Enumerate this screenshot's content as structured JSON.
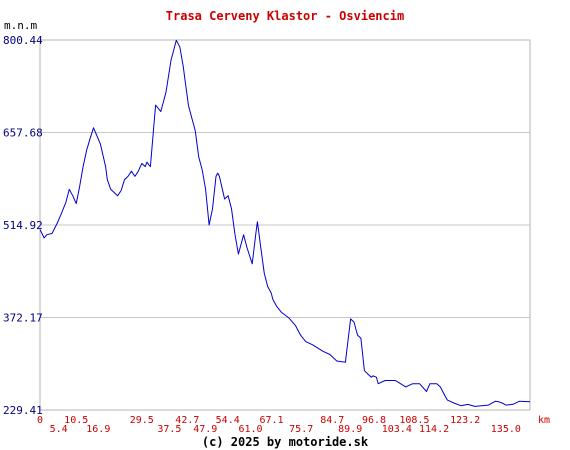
{
  "colors": {
    "line": "#0000cc",
    "grid": "#c8c8c8",
    "title": "#cc0000",
    "ytick": "#000080",
    "xtick": "#cc0000"
  },
  "footer": "(c) 2025 by motoride.sk",
  "chart_data": {
    "type": "line",
    "title": "Trasa Cerveny Klastor - Osviencim",
    "ylabel": "m.n.m",
    "xlabel": "km",
    "grid": true,
    "ylim": [
      229.41,
      800.44
    ],
    "xlim": [
      0,
      142
    ],
    "y_ticks": [
      "800.44",
      "657.68",
      "514.92",
      "372.17",
      "229.41"
    ],
    "x_ticks_upper": [
      "0",
      "10.5",
      "29.5",
      "42.7",
      "54.4",
      "67.1",
      "84.7",
      "96.8",
      "108.5",
      "123.2"
    ],
    "x_ticks_lower": [
      "5.4",
      "16.9",
      "37.5",
      "47.9",
      "61.0",
      "75.7",
      "89.9",
      "103.4",
      "114.2",
      "135.0"
    ],
    "series": [
      {
        "x": [
          0,
          1.2,
          2,
          3.5,
          5,
          6,
          7.5,
          8.5,
          9.5,
          10.5,
          11.5,
          12.5,
          13.5,
          14.5,
          15.5,
          17.5,
          19,
          19.5,
          20.5,
          22.5,
          23.5,
          24.5,
          25.5,
          26.5,
          27.5,
          28.5,
          29.5,
          30.5,
          31,
          31.5,
          32,
          33.5,
          35,
          36.5,
          38,
          38.5,
          39.5,
          40.5,
          41.5,
          42,
          43,
          44,
          44.5,
          45,
          46,
          47,
          48,
          49,
          50,
          51,
          51.5,
          52,
          53.5,
          54.5,
          55.5,
          56.5,
          57.5,
          59,
          60,
          61.5,
          62.5,
          63,
          64,
          65,
          66,
          67,
          67.5,
          68.5,
          70,
          72,
          74,
          75.5,
          77,
          79,
          80.5,
          82,
          84,
          86,
          88.5,
          90,
          91,
          92,
          93,
          94,
          95,
          96,
          96.5,
          97.5,
          98,
          100,
          103,
          106,
          108,
          110,
          112,
          113,
          115,
          116,
          117,
          118,
          120,
          122,
          124,
          126,
          128,
          130,
          131,
          132,
          133,
          134,
          135,
          137,
          139,
          142
        ],
        "values": [
          508,
          495,
          500,
          502,
          518,
          530,
          550,
          570,
          560,
          548,
          575,
          605,
          630,
          648,
          665,
          640,
          605,
          585,
          570,
          560,
          568,
          585,
          590,
          598,
          590,
          598,
          610,
          605,
          612,
          608,
          605,
          700,
          690,
          720,
          770,
          780,
          800,
          790,
          760,
          740,
          700,
          680,
          670,
          660,
          620,
          600,
          570,
          515,
          540,
          590,
          595,
          590,
          555,
          560,
          540,
          500,
          470,
          500,
          480,
          455,
          500,
          520,
          480,
          440,
          420,
          410,
          400,
          390,
          380,
          372,
          360,
          345,
          335,
          330,
          325,
          320,
          315,
          305,
          303,
          370,
          365,
          345,
          340,
          290,
          285,
          280,
          282,
          280,
          270,
          275,
          275,
          265,
          270,
          270,
          258,
          270,
          270,
          265,
          255,
          245,
          240,
          236,
          238,
          235,
          236,
          237,
          240,
          243,
          242,
          240,
          237,
          238,
          243,
          242
        ]
      }
    ]
  }
}
